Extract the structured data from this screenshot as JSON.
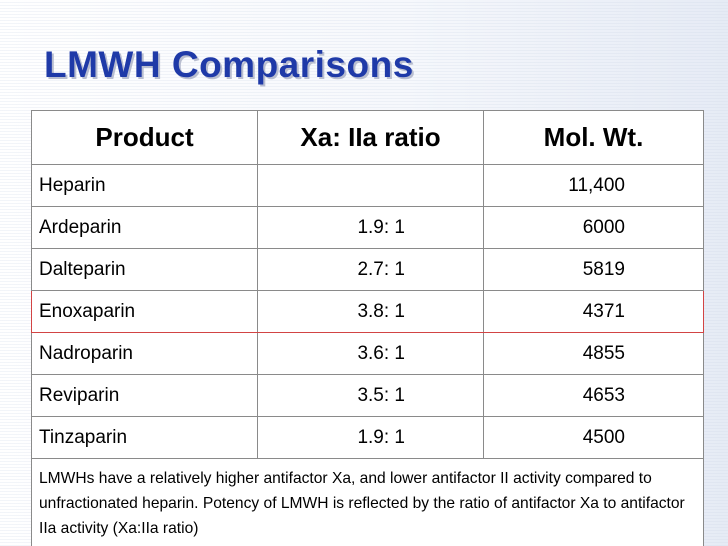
{
  "slide": {
    "title": "LMWH Comparisons"
  },
  "table": {
    "headers": [
      "Product",
      "Xa: IIa ratio",
      "Mol. Wt."
    ],
    "rows": [
      {
        "product": "Heparin",
        "ratio": "",
        "mol_wt": "11,400"
      },
      {
        "product": "Ardeparin",
        "ratio": "1.9: 1",
        "mol_wt": "6000"
      },
      {
        "product": "Dalteparin",
        "ratio": "2.7: 1",
        "mol_wt": "5819"
      },
      {
        "product": "Enoxaparin",
        "ratio": "3.8: 1",
        "mol_wt": "4371"
      },
      {
        "product": "Nadroparin",
        "ratio": "3.6: 1",
        "mol_wt": "4855"
      },
      {
        "product": "Reviparin",
        "ratio": "3.5: 1",
        "mol_wt": "4653"
      },
      {
        "product": "Tinzaparin",
        "ratio": "1.9: 1",
        "mol_wt": "4500"
      }
    ],
    "footnote": "LMWHs have a relatively higher antifactor Xa, and lower antifactor II activity compared to unfractionated heparin. Potency of LMWH is reflected by the ratio of antifactor Xa to antifactor IIa activity (Xa:IIa ratio)",
    "highlight_color": "#d24444"
  },
  "colors": {
    "title": "#1f3aa8",
    "title_shadow": "#b9bed0"
  }
}
